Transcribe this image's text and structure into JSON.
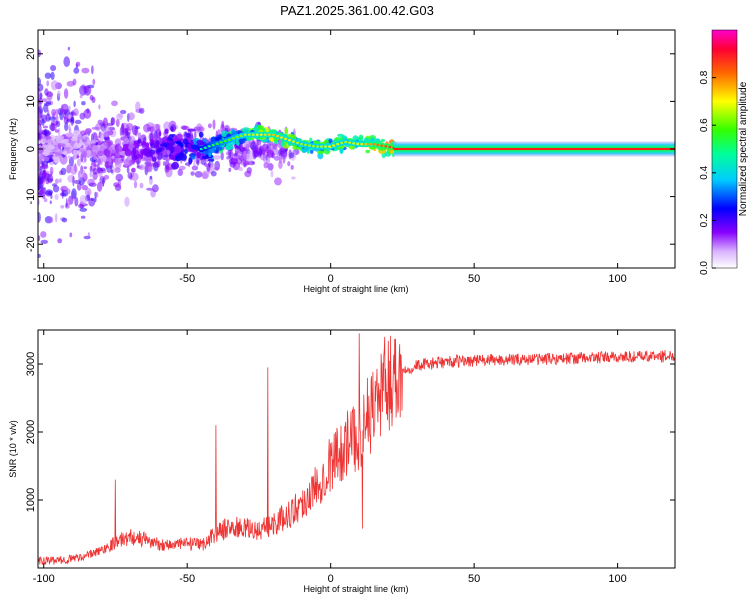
{
  "page_title": "PAZ1.2025.361.00.42.G03",
  "colors": {
    "snr_line": "#ee3333",
    "spectrum_ridge": "#ff1a1a",
    "axis": "#000000"
  },
  "chart_data": [
    {
      "id": "spectrogram",
      "type": "heatmap",
      "title": "",
      "xlabel": "Height of straight line (km)",
      "ylabel": "Frequency (Hz)",
      "xlim": [
        -102,
        120
      ],
      "ylim": [
        -25,
        25
      ],
      "xticks": [
        -100,
        -50,
        0,
        50,
        100
      ],
      "yticks": [
        -20,
        -10,
        0,
        10,
        20
      ],
      "colorbar": {
        "label": "Normalized spectral amplitude",
        "range": [
          0,
          1
        ],
        "ticks": [
          0.0,
          0.2,
          0.4,
          0.6,
          0.8
        ],
        "colormap": [
          "#ffffff",
          "#8800ff",
          "#0000ff",
          "#00ffff",
          "#00ff00",
          "#ffff00",
          "#ff0000",
          "#ff00cc"
        ]
      },
      "ridge": {
        "description": "dominant frequency vs height",
        "x": [
          -100,
          -90,
          -80,
          -70,
          -60,
          -50,
          -45,
          -40,
          -35,
          -30,
          -25,
          -20,
          -15,
          -10,
          -5,
          0,
          5,
          10,
          15,
          20,
          25,
          50,
          100,
          120
        ],
        "y": [
          0,
          1,
          0,
          -1,
          0,
          1,
          0,
          1,
          2,
          3,
          3,
          3,
          2,
          1,
          0.5,
          0.5,
          1.5,
          1,
          1,
          0.5,
          0,
          0,
          0,
          0
        ],
        "amplitude": [
          0.1,
          0.1,
          0.12,
          0.15,
          0.2,
          0.25,
          0.35,
          0.45,
          0.5,
          0.55,
          0.6,
          0.65,
          0.6,
          0.55,
          0.55,
          0.6,
          0.55,
          0.6,
          0.7,
          0.75,
          0.85,
          0.9,
          0.9,
          0.9
        ]
      }
    },
    {
      "id": "snr",
      "type": "line",
      "title": "",
      "xlabel": "Height of straight line (km)",
      "ylabel": "SNR (10 * v/v)",
      "xlim": [
        -102,
        120
      ],
      "ylim": [
        0,
        3500
      ],
      "xticks": [
        -100,
        -50,
        0,
        50,
        100
      ],
      "yticks": [
        1000,
        2000,
        3000
      ],
      "series": [
        {
          "name": "SNR",
          "x": [
            -102,
            -95,
            -90,
            -85,
            -80,
            -75,
            -70,
            -65,
            -60,
            -55,
            -50,
            -45,
            -40,
            -35,
            -30,
            -25,
            -20,
            -15,
            -10,
            -5,
            0,
            5,
            10,
            15,
            20,
            25,
            30,
            40,
            50,
            60,
            80,
            100,
            120
          ],
          "y": [
            100,
            110,
            140,
            180,
            260,
            380,
            460,
            420,
            350,
            340,
            360,
            330,
            520,
            600,
            580,
            550,
            650,
            780,
            950,
            1200,
            1550,
            1800,
            1950,
            2400,
            2750,
            2900,
            2980,
            3030,
            3050,
            3060,
            3080,
            3100,
            3120
          ]
        }
      ],
      "annotations": [
        {
          "x": 10,
          "y": 3450,
          "label": ""
        },
        {
          "x": 11,
          "y": 580,
          "label": ""
        },
        {
          "x": -22,
          "y": 2950,
          "label": ""
        },
        {
          "x": -75,
          "y": 1300,
          "label": ""
        },
        {
          "x": -40,
          "y": 2100,
          "label": ""
        }
      ]
    }
  ]
}
